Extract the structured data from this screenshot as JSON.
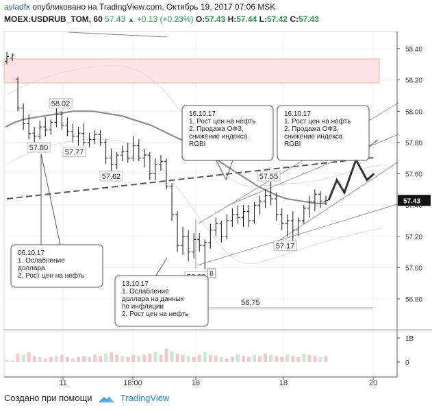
{
  "header": {
    "author": "avladfx",
    "published_text": "опубликовано на TradingView.com, Октябрь 19, 2017 07:06 MSK",
    "symbol": "MOEX:USDRUB_TOM, 60",
    "last": "57.43",
    "change": "+0.13 (+0.23%)",
    "o_label": "O:",
    "o": "57.43",
    "h_label": "H:",
    "h": "57.44",
    "l_label": "L:",
    "l": "57.42",
    "c_label": "C:",
    "c": "57.43"
  },
  "footer": {
    "created_with": "Создано при помощи",
    "brand": "TradingView"
  },
  "colors": {
    "axis_text": "#333333",
    "price_badge": "#111111",
    "zone_fill": "#fde3e3",
    "zone_stroke": "#f3a8a8",
    "ma_line": "#8c8c8c",
    "volume_bar": "#f2c9c9",
    "volume_bar_up": "#c9e9cf"
  },
  "chart_data": {
    "type": "candlestick",
    "timeframe": "60",
    "price_axis": {
      "ylim": [
        56.7,
        58.5
      ],
      "ticks": [
        "58.40",
        "58.20",
        "58.00",
        "57.80",
        "57.60",
        "57.40",
        "57.20",
        "57.00",
        "56.80"
      ]
    },
    "time_axis": {
      "ticks": [
        "11",
        "18:00",
        "16",
        "18",
        "20"
      ]
    },
    "volume_axis": {
      "ticks": [
        "1B",
        "0"
      ]
    },
    "last_price_badge": "57.43",
    "grid": true,
    "candles": [
      {
        "o": 58.32,
        "h": 58.38,
        "l": 58.3,
        "c": 58.35
      },
      {
        "o": 58.34,
        "h": 58.37,
        "l": 58.32,
        "c": 58.36
      },
      {
        "o": 58.2,
        "h": 58.22,
        "l": 58.0,
        "c": 58.02
      },
      {
        "o": 58.02,
        "h": 58.05,
        "l": 57.88,
        "c": 57.92
      },
      {
        "o": 57.92,
        "h": 57.98,
        "l": 57.82,
        "c": 57.86
      },
      {
        "o": 57.86,
        "h": 57.9,
        "l": 57.8,
        "c": 57.84
      },
      {
        "o": 57.84,
        "h": 57.94,
        "l": 57.82,
        "c": 57.9
      },
      {
        "o": 57.9,
        "h": 57.96,
        "l": 57.84,
        "c": 57.88
      },
      {
        "o": 57.88,
        "h": 57.95,
        "l": 57.85,
        "c": 57.93
      },
      {
        "o": 57.93,
        "h": 58.02,
        "l": 57.9,
        "c": 57.98
      },
      {
        "o": 57.98,
        "h": 58.0,
        "l": 57.88,
        "c": 57.91
      },
      {
        "o": 57.91,
        "h": 57.96,
        "l": 57.84,
        "c": 57.87
      },
      {
        "o": 57.87,
        "h": 57.92,
        "l": 57.8,
        "c": 57.84
      },
      {
        "o": 57.84,
        "h": 57.9,
        "l": 57.78,
        "c": 57.86
      },
      {
        "o": 57.86,
        "h": 57.92,
        "l": 57.78,
        "c": 57.8
      },
      {
        "o": 57.8,
        "h": 57.86,
        "l": 57.77,
        "c": 57.82
      },
      {
        "o": 57.82,
        "h": 57.88,
        "l": 57.79,
        "c": 57.85
      },
      {
        "o": 57.85,
        "h": 57.88,
        "l": 57.78,
        "c": 57.8
      },
      {
        "o": 57.8,
        "h": 57.82,
        "l": 57.66,
        "c": 57.7
      },
      {
        "o": 57.7,
        "h": 57.76,
        "l": 57.62,
        "c": 57.66
      },
      {
        "o": 57.66,
        "h": 57.74,
        "l": 57.63,
        "c": 57.72
      },
      {
        "o": 57.72,
        "h": 57.78,
        "l": 57.68,
        "c": 57.74
      },
      {
        "o": 57.74,
        "h": 57.8,
        "l": 57.67,
        "c": 57.7
      },
      {
        "o": 57.7,
        "h": 57.84,
        "l": 57.68,
        "c": 57.78
      },
      {
        "o": 57.78,
        "h": 57.82,
        "l": 57.68,
        "c": 57.7
      },
      {
        "o": 57.7,
        "h": 57.76,
        "l": 57.64,
        "c": 57.72
      },
      {
        "o": 57.72,
        "h": 57.74,
        "l": 57.56,
        "c": 57.6
      },
      {
        "o": 57.6,
        "h": 57.7,
        "l": 57.56,
        "c": 57.66
      },
      {
        "o": 57.66,
        "h": 57.72,
        "l": 57.62,
        "c": 57.68
      },
      {
        "o": 57.68,
        "h": 57.7,
        "l": 57.5,
        "c": 57.52
      },
      {
        "o": 57.52,
        "h": 57.54,
        "l": 57.3,
        "c": 57.34
      },
      {
        "o": 57.34,
        "h": 57.36,
        "l": 57.1,
        "c": 57.14
      },
      {
        "o": 57.14,
        "h": 57.26,
        "l": 57.08,
        "c": 57.2
      },
      {
        "o": 57.2,
        "h": 57.24,
        "l": 57.04,
        "c": 57.1
      },
      {
        "o": 57.1,
        "h": 57.22,
        "l": 57.06,
        "c": 57.18
      },
      {
        "o": 57.18,
        "h": 57.22,
        "l": 57.1,
        "c": 57.14
      },
      {
        "o": 57.14,
        "h": 57.18,
        "l": 56.99,
        "c": 57.16
      },
      {
        "o": 57.16,
        "h": 57.28,
        "l": 57.12,
        "c": 57.24
      },
      {
        "o": 57.24,
        "h": 57.32,
        "l": 57.2,
        "c": 57.28
      },
      {
        "o": 57.28,
        "h": 57.3,
        "l": 57.16,
        "c": 57.2
      },
      {
        "o": 57.2,
        "h": 57.34,
        "l": 57.18,
        "c": 57.3
      },
      {
        "o": 57.3,
        "h": 57.38,
        "l": 57.26,
        "c": 57.34
      },
      {
        "o": 57.34,
        "h": 57.4,
        "l": 57.28,
        "c": 57.32
      },
      {
        "o": 57.32,
        "h": 57.4,
        "l": 57.26,
        "c": 57.36
      },
      {
        "o": 57.36,
        "h": 57.4,
        "l": 57.26,
        "c": 57.3
      },
      {
        "o": 57.3,
        "h": 57.42,
        "l": 57.28,
        "c": 57.4
      },
      {
        "o": 57.4,
        "h": 57.46,
        "l": 57.34,
        "c": 57.42
      },
      {
        "o": 57.42,
        "h": 57.5,
        "l": 57.38,
        "c": 57.46
      },
      {
        "o": 57.46,
        "h": 57.55,
        "l": 57.4,
        "c": 57.44
      },
      {
        "o": 57.44,
        "h": 57.48,
        "l": 57.3,
        "c": 57.34
      },
      {
        "o": 57.34,
        "h": 57.38,
        "l": 57.24,
        "c": 57.28
      },
      {
        "o": 57.28,
        "h": 57.34,
        "l": 57.2,
        "c": 57.3
      },
      {
        "o": 57.3,
        "h": 57.36,
        "l": 57.17,
        "c": 57.24
      },
      {
        "o": 57.24,
        "h": 57.32,
        "l": 57.2,
        "c": 57.3
      },
      {
        "o": 57.3,
        "h": 57.4,
        "l": 57.28,
        "c": 57.38
      },
      {
        "o": 57.38,
        "h": 57.46,
        "l": 57.32,
        "c": 57.42
      },
      {
        "o": 57.42,
        "h": 57.5,
        "l": 57.36,
        "c": 57.47
      },
      {
        "o": 57.47,
        "h": 57.49,
        "l": 57.38,
        "c": 57.42
      },
      {
        "o": 57.42,
        "h": 57.46,
        "l": 57.4,
        "c": 57.43
      }
    ],
    "moving_average": [
      57.9,
      57.93,
      57.95,
      57.96,
      57.97,
      57.98,
      57.99,
      58.0,
      58.0,
      58.0,
      57.99,
      57.98,
      57.97,
      57.95,
      57.93,
      57.91,
      57.88,
      57.85,
      57.82,
      57.79,
      57.76,
      57.72,
      57.68,
      57.64,
      57.6,
      57.56,
      57.52,
      57.49,
      57.46,
      57.44,
      57.43,
      57.42,
      57.41,
      57.41
    ],
    "volume": [
      0.1,
      0.05,
      0.35,
      0.3,
      0.4,
      0.25,
      0.2,
      0.15,
      0.2,
      0.25,
      0.3,
      0.2,
      0.15,
      0.2,
      0.25,
      0.2,
      0.3,
      0.25,
      0.35,
      0.4,
      0.3,
      0.25,
      0.2,
      0.3,
      0.25,
      0.3,
      0.35,
      0.4,
      0.3,
      0.55,
      0.45,
      0.35,
      0.3,
      0.25,
      0.2,
      0.3,
      0.4,
      0.3,
      0.25,
      0.2,
      0.15,
      0.2,
      0.3,
      0.25,
      0.2,
      0.3,
      0.25,
      0.35,
      0.3,
      0.25,
      0.2,
      0.3,
      0.25,
      0.2,
      0.35,
      0.3,
      0.25,
      0.2,
      0.25
    ],
    "price_labels": [
      {
        "text": "58.02",
        "price": 58.02
      },
      {
        "text": "57.80",
        "price": 57.8
      },
      {
        "text": "57.77",
        "price": 57.77
      },
      {
        "text": "57.62",
        "price": 57.62
      },
      {
        "text": "57.55",
        "price": 57.55
      },
      {
        "text": "57.17",
        "price": 57.17
      },
      {
        "text": "56.99",
        "price": 56.99
      }
    ],
    "level_label": {
      "text": "56,75",
      "price": 56.75
    },
    "marker_b": "B",
    "annotations": [
      {
        "name": "note-06-10",
        "lines": [
          "06.10.17",
          "1. Ослабление",
          "доллара",
          "2. Рост цен на нефть"
        ]
      },
      {
        "name": "note-13-10",
        "lines": [
          "13.10.17",
          "1. Ослабление",
          "доллара на данных",
          "по инфляции",
          "2. Рост цен на нефть"
        ]
      },
      {
        "name": "note-16-10-a",
        "lines": [
          "16.10.17",
          "1. Рост цен на нефть",
          "2. Продажа ОФЗ,",
          "снижение индекса",
          "RGBI"
        ]
      },
      {
        "name": "note-16-10-b",
        "lines": [
          "16.10.17",
          "1. Рост цен на нефть",
          "2. Продажа ОФЗ,",
          "снижение индекса",
          "RGBI"
        ]
      }
    ],
    "forecast_path": [
      57.43,
      57.56,
      57.48,
      57.69,
      57.56,
      57.6
    ]
  }
}
